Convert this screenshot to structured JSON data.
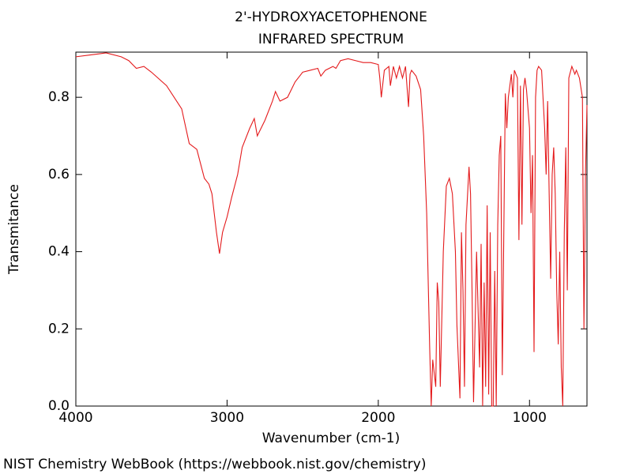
{
  "chart_data": {
    "type": "line",
    "title": "2'-HYDROXYACETOPHENONE",
    "subtitle": "INFRARED SPECTRUM",
    "x_label": "Wavenumber (cm-1)",
    "y_label": "Transmitance",
    "footer": "NIST Chemistry WebBook (https://webbook.nist.gov/chemistry)",
    "xlim": [
      4000,
      620
    ],
    "ylim": [
      0,
      0.917
    ],
    "xticks": [
      4000,
      3000,
      2000,
      1000
    ],
    "yticks": [
      {
        "value": 0,
        "label": "0.0"
      },
      0.2,
      0.4,
      0.6,
      0.8
    ],
    "x": [
      4000,
      3900,
      3800,
      3700,
      3650,
      3600,
      3550,
      3500,
      3400,
      3300,
      3250,
      3200,
      3150,
      3120,
      3100,
      3070,
      3050,
      3030,
      3000,
      2970,
      2930,
      2900,
      2850,
      2820,
      2800,
      2750,
      2700,
      2680,
      2650,
      2600,
      2550,
      2500,
      2450,
      2400,
      2380,
      2350,
      2300,
      2280,
      2250,
      2200,
      2150,
      2100,
      2050,
      2000,
      1990,
      1980,
      1960,
      1930,
      1920,
      1900,
      1880,
      1860,
      1840,
      1820,
      1800,
      1790,
      1780,
      1750,
      1720,
      1700,
      1680,
      1660,
      1650,
      1640,
      1620,
      1610,
      1600,
      1590,
      1570,
      1550,
      1530,
      1510,
      1490,
      1480,
      1460,
      1450,
      1440,
      1430,
      1420,
      1400,
      1390,
      1380,
      1370,
      1350,
      1330,
      1320,
      1310,
      1300,
      1290,
      1280,
      1270,
      1260,
      1250,
      1240,
      1230,
      1220,
      1210,
      1200,
      1190,
      1180,
      1160,
      1150,
      1140,
      1120,
      1110,
      1100,
      1080,
      1070,
      1060,
      1050,
      1040,
      1030,
      1020,
      1000,
      990,
      980,
      970,
      960,
      950,
      940,
      920,
      900,
      890,
      880,
      870,
      860,
      850,
      840,
      830,
      820,
      810,
      800,
      790,
      780,
      770,
      760,
      750,
      740,
      720,
      700,
      690,
      670,
      650,
      640,
      630,
      620
    ],
    "series": [
      {
        "name": "Transmitance",
        "color": "#e41a1c",
        "values": [
          0.905,
          0.91,
          0.915,
          0.905,
          0.895,
          0.875,
          0.88,
          0.865,
          0.83,
          0.77,
          0.68,
          0.665,
          0.59,
          0.575,
          0.55,
          0.45,
          0.395,
          0.45,
          0.49,
          0.54,
          0.6,
          0.67,
          0.72,
          0.745,
          0.7,
          0.74,
          0.79,
          0.815,
          0.79,
          0.8,
          0.84,
          0.865,
          0.87,
          0.875,
          0.855,
          0.87,
          0.88,
          0.875,
          0.895,
          0.9,
          0.895,
          0.89,
          0.89,
          0.885,
          0.85,
          0.8,
          0.87,
          0.88,
          0.83,
          0.88,
          0.85,
          0.88,
          0.85,
          0.88,
          0.775,
          0.86,
          0.87,
          0.855,
          0.82,
          0.7,
          0.5,
          0.15,
          0.0,
          0.12,
          0.05,
          0.32,
          0.27,
          0.05,
          0.4,
          0.57,
          0.59,
          0.55,
          0.4,
          0.21,
          0.02,
          0.45,
          0.3,
          0.05,
          0.47,
          0.62,
          0.55,
          0.3,
          0.01,
          0.4,
          0.1,
          0.42,
          0.0,
          0.32,
          0.05,
          0.52,
          0.03,
          0.45,
          0.0,
          0.0,
          0.35,
          0.0,
          0.47,
          0.65,
          0.7,
          0.08,
          0.81,
          0.72,
          0.8,
          0.86,
          0.8,
          0.87,
          0.85,
          0.43,
          0.83,
          0.47,
          0.82,
          0.85,
          0.82,
          0.72,
          0.5,
          0.65,
          0.14,
          0.8,
          0.87,
          0.88,
          0.87,
          0.72,
          0.6,
          0.79,
          0.55,
          0.33,
          0.6,
          0.67,
          0.55,
          0.3,
          0.16,
          0.4,
          0.1,
          0.0,
          0.45,
          0.67,
          0.3,
          0.85,
          0.88,
          0.86,
          0.87,
          0.85,
          0.8,
          0.2,
          0.6,
          0.78
        ]
      }
    ]
  }
}
